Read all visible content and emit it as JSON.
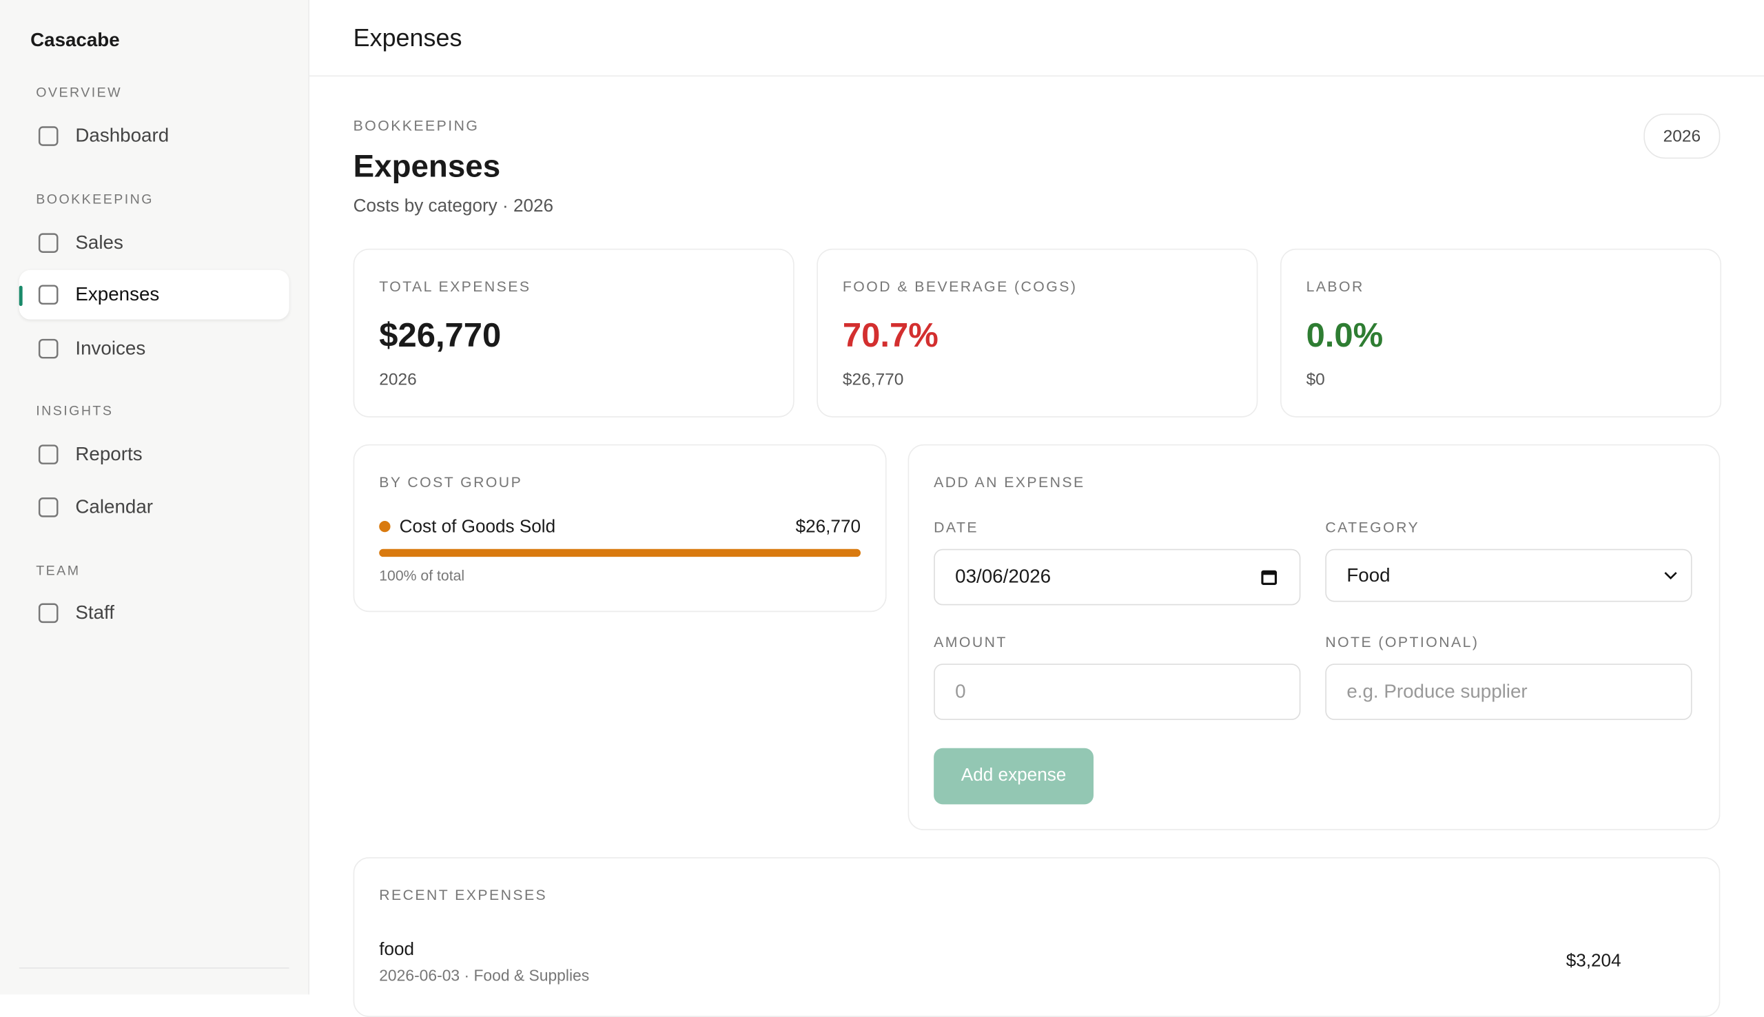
{
  "sidebar": {
    "brand": "Casacabe",
    "sections": [
      {
        "title": "OVERVIEW",
        "items": [
          "Dashboard"
        ]
      },
      {
        "title": "BOOKKEEPING",
        "items": [
          "Sales",
          "Expenses",
          "Invoices"
        ]
      },
      {
        "title": "INSIGHTS",
        "items": [
          "Reports",
          "Calendar"
        ]
      },
      {
        "title": "TEAM",
        "items": [
          "Staff"
        ]
      }
    ]
  },
  "header": {
    "title": "Expenses"
  },
  "page": {
    "eyebrow": "BOOKKEEPING",
    "title": "Expenses",
    "subtitle": "Costs by category · 2026",
    "year": "2026"
  },
  "stats": [
    {
      "label": "TOTAL EXPENSES",
      "value": "$26,770",
      "sub": "2026"
    },
    {
      "label": "FOOD & BEVERAGE (COGS)",
      "value": "70.7%",
      "sub": "$26,770"
    },
    {
      "label": "LABOR",
      "value": "0.0%",
      "sub": "$0"
    }
  ],
  "cost_groups": {
    "title": "BY COST GROUP",
    "items": [
      {
        "name": "Cost of Goods Sold",
        "amount": "$26,770",
        "share": "100% of total"
      }
    ]
  },
  "form": {
    "title": "ADD AN EXPENSE",
    "date_label": "DATE",
    "date_value": "03/06/2026",
    "category_label": "CATEGORY",
    "category_value": "Food",
    "amount_label": "AMOUNT",
    "amount_placeholder": "0",
    "note_label": "NOTE (OPTIONAL)",
    "note_placeholder": "e.g. Produce supplier",
    "submit": "Add expense"
  },
  "recent": {
    "title": "RECENT EXPENSES",
    "items": [
      {
        "note": "food",
        "meta": "2026-06-03 · Food & Supplies",
        "amount": "$3,204"
      }
    ]
  }
}
